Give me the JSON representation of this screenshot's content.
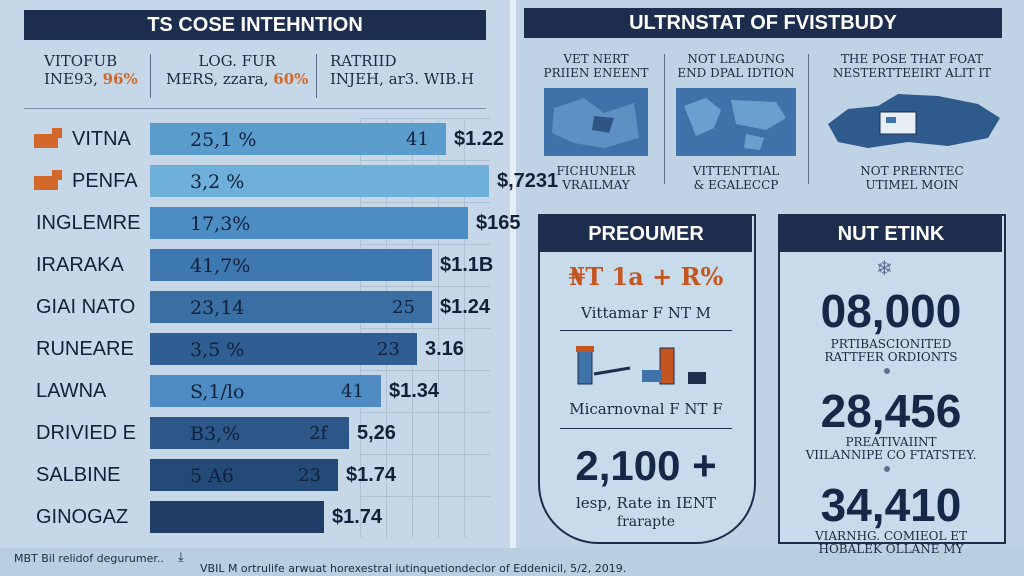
{
  "left": {
    "title": "TS COSE INTEHNTION",
    "headers": [
      {
        "line1": "VITOFUB",
        "line2": "INE93, ",
        "accent": "96%"
      },
      {
        "line1": "LOG. FUR",
        "line2": "MERS, zzara, ",
        "accent": "60%"
      },
      {
        "line1": "RATRIID",
        "line2": "INJEH, ar3. WIB.H",
        "accent": ""
      }
    ],
    "rows": [
      {
        "label": "VITNA",
        "pct": "25,1 %",
        "num": "41",
        "value": "$1.22",
        "bar": 0.6,
        "color": "#5a9ccc",
        "icon": true
      },
      {
        "label": "PENFA",
        "pct": "3,2 %",
        "num": "",
        "value": "$,7231",
        "bar": 0.72,
        "color": "#6fb0da",
        "icon": true
      },
      {
        "label": "INGLEMRE",
        "pct": "17,3%",
        "num": "",
        "value": "$165",
        "bar": 0.66,
        "color": "#4c8ec4",
        "icon": false
      },
      {
        "label": "IRARAKA",
        "pct": "41,7%",
        "num": "",
        "value": "$1.1B",
        "bar": 0.56,
        "color": "#3d78b0",
        "icon": false
      },
      {
        "label": "GIAI NATO",
        "pct": "23,14",
        "num": "25",
        "value": "$1.24",
        "bar": 0.56,
        "color": "#3a6fa3",
        "icon": false
      },
      {
        "label": "RUNEARE",
        "pct": "3,5 %",
        "num": "23",
        "value": "3.16",
        "bar": 0.52,
        "color": "#2f5f92",
        "icon": false
      },
      {
        "label": "LAWNA",
        "pct": "S,1/lo",
        "num": "41",
        "value": "$1.34",
        "bar": 0.42,
        "color": "#4d8bc2",
        "icon": false
      },
      {
        "label": "DRIVIED E",
        "pct": "B3,%",
        "num": "2f",
        "value": "5,26",
        "bar": 0.33,
        "color": "#2c5788",
        "icon": false
      },
      {
        "label": "SALBINE",
        "pct": "5 A6",
        "num": "23",
        "value": "$1.74",
        "bar": 0.3,
        "color": "#244a78",
        "icon": false
      },
      {
        "label": "GINOGAZ",
        "pct": "",
        "num": "",
        "value": "$1.74",
        "bar": 0.26,
        "color": "#1f3d66",
        "icon": false
      }
    ],
    "footer_left": "MBT Bil relidof degurumer..",
    "footer_center": "VBIL M ortrulife arwuat horexestral iutinquetiondeclor of Eddenicil, 5/2, 2019."
  },
  "right": {
    "title": "ULTRNSTAT OF FVISTBUDY",
    "cards": [
      {
        "top1": "VET NERT",
        "top2": "PRIIEN ENEENT",
        "bottom1": "FICHUNELR",
        "bottom2": "VRAILMAY"
      },
      {
        "top1": "NOT LEADUNG",
        "top2": "END DPAL IDTION",
        "bottom1": "VITTENTTIAL",
        "bottom2": "& EGALECCP"
      },
      {
        "top1": "THE POSE THAT FOAT",
        "top2": "NESTERTTEEIRT ALIT IT",
        "bottom1": "NOT PRERNTEC",
        "bottom2": "UTIMEL MOIN"
      }
    ],
    "preoumer": {
      "title": "PREOUMER",
      "line1": "₦T 1a + R%",
      "line2": "Vittamar F NT M",
      "line3": "Micarnovnal F NT F",
      "big": "2,100 +",
      "sub1": "lesp, Rate in IENT",
      "sub2": "frarapte"
    },
    "nutetink": {
      "title": "NUT ETINK",
      "stats": [
        {
          "value": "08,000",
          "l1": "PRTIBASCIONITED",
          "l2": "RATTFER ORDIONTS"
        },
        {
          "value": "28,456",
          "l1": "PREATIVAIINT",
          "l2": "VIILANNIPE CO FTATSTEY."
        },
        {
          "value": "34,410",
          "l1": "VIARNHG. COMIEOL ET",
          "l2": "HOBALEK OLLANE MY"
        }
      ]
    }
  }
}
